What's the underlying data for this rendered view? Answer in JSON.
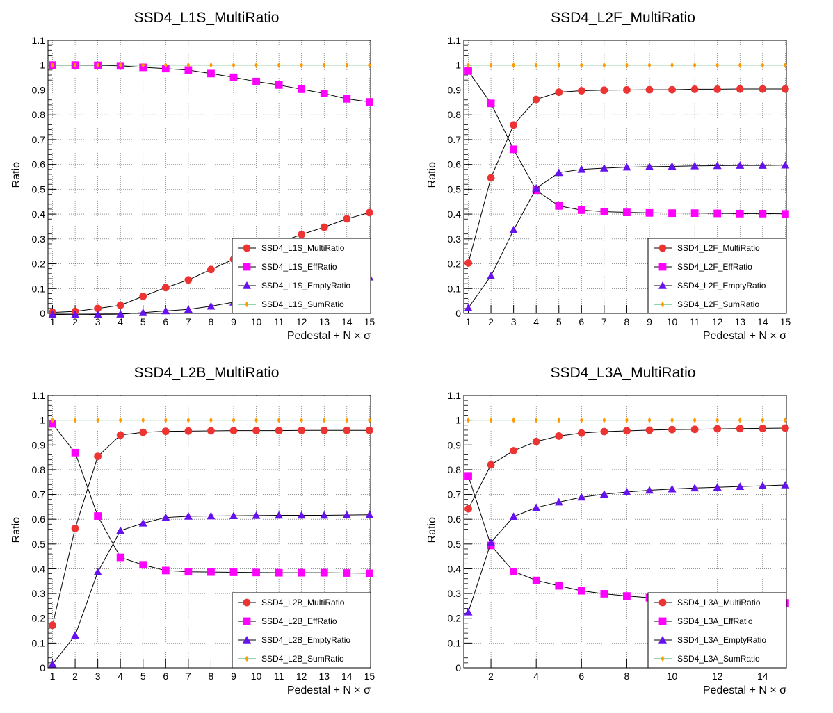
{
  "chart_data": [
    {
      "type": "line",
      "title": "SSD4_L1S_MultiRatio",
      "xlabel": "Pedestal + N × σ",
      "ylabel": "Ratio",
      "xlim": [
        0.8,
        15.05
      ],
      "ylim": [
        0,
        1.1
      ],
      "xticks": [
        1,
        2,
        3,
        4,
        5,
        6,
        7,
        8,
        9,
        10,
        11,
        12,
        13,
        14,
        15
      ],
      "yticks": [
        0,
        0.1,
        0.2,
        0.3,
        0.4,
        0.5,
        0.6,
        0.7,
        0.8,
        0.9,
        1,
        1.1
      ],
      "ytick_labels": [
        "0",
        "0.1",
        "0.2",
        "0.3",
        "0.4",
        "0.5",
        "0.6",
        "0.7",
        "0.8",
        "0.9",
        "1",
        "1.1"
      ],
      "grid": true,
      "legend_position": "bottom-right",
      "x": [
        1,
        2,
        3,
        4,
        5,
        6,
        7,
        8,
        9,
        10,
        11,
        12,
        13,
        14,
        15
      ],
      "series": [
        {
          "name": "SSD4_L1S_MultiRatio",
          "color": "#ee3333",
          "marker": "circle",
          "values": [
            0.004,
            0.008,
            0.02,
            0.033,
            0.069,
            0.104,
            0.135,
            0.177,
            0.218,
            0.26,
            0.285,
            0.318,
            0.347,
            0.381,
            0.406
          ]
        },
        {
          "name": "SSD4_L1S_EffRatio",
          "color": "#ff00ff",
          "marker": "square",
          "values": [
            1.0,
            1.0,
            0.999,
            0.997,
            0.991,
            0.986,
            0.98,
            0.966,
            0.951,
            0.934,
            0.92,
            0.903,
            0.886,
            0.864,
            0.852
          ]
        },
        {
          "name": "SSD4_L1S_EmptyRatio",
          "color": "#6611ee",
          "marker": "triangle",
          "values": [
            -0.004,
            -0.006,
            -0.004,
            -0.003,
            0.003,
            0.01,
            0.016,
            0.029,
            0.045,
            0.061,
            0.078,
            0.094,
            0.108,
            0.127,
            0.146
          ]
        },
        {
          "name": "SSD4_L1S_SumRatio",
          "color": "#ff9900",
          "marker": "diamond",
          "values": [
            1,
            1,
            1,
            1,
            1,
            1,
            1,
            1,
            1,
            1,
            1,
            1,
            1,
            1,
            1
          ]
        }
      ]
    },
    {
      "type": "line",
      "title": "SSD4_L2F_MultiRatio",
      "xlabel": "Pedestal + N × σ",
      "ylabel": "Ratio",
      "xlim": [
        0.8,
        15.05
      ],
      "ylim": [
        0,
        1.1
      ],
      "xticks": [
        1,
        2,
        3,
        4,
        5,
        6,
        7,
        8,
        9,
        10,
        11,
        12,
        13,
        14,
        15
      ],
      "yticks": [
        0,
        0.1,
        0.2,
        0.3,
        0.4,
        0.5,
        0.6,
        0.7,
        0.8,
        0.9,
        1,
        1.1
      ],
      "ytick_labels": [
        "0",
        "0.1",
        "0.2",
        "0.3",
        "0.4",
        "0.5",
        "0.6",
        "0.7",
        "0.8",
        "0.9",
        "1",
        "1.1"
      ],
      "grid": true,
      "legend_position": "bottom-right",
      "x": [
        1,
        2,
        3,
        4,
        5,
        6,
        7,
        8,
        9,
        10,
        11,
        12,
        13,
        14,
        15
      ],
      "series": [
        {
          "name": "SSD4_L2F_MultiRatio",
          "color": "#ee3333",
          "marker": "circle",
          "values": [
            0.203,
            0.546,
            0.759,
            0.862,
            0.891,
            0.897,
            0.899,
            0.9,
            0.901,
            0.901,
            0.903,
            0.903,
            0.904,
            0.904,
            0.904
          ]
        },
        {
          "name": "SSD4_L2F_EffRatio",
          "color": "#ff00ff",
          "marker": "square",
          "values": [
            0.976,
            0.846,
            0.661,
            0.496,
            0.433,
            0.416,
            0.41,
            0.407,
            0.405,
            0.404,
            0.404,
            0.403,
            0.402,
            0.402,
            0.401
          ]
        },
        {
          "name": "SSD4_L2F_EmptyRatio",
          "color": "#6611ee",
          "marker": "triangle",
          "values": [
            0.022,
            0.151,
            0.336,
            0.504,
            0.567,
            0.58,
            0.585,
            0.589,
            0.591,
            0.592,
            0.594,
            0.595,
            0.596,
            0.596,
            0.597
          ]
        },
        {
          "name": "SSD4_L2F_SumRatio",
          "color": "#ff9900",
          "marker": "diamond",
          "values": [
            1,
            1,
            1,
            1,
            1,
            1,
            1,
            1,
            1,
            1,
            1,
            1,
            1,
            1,
            1
          ]
        }
      ]
    },
    {
      "type": "line",
      "title": "SSD4_L2B_MultiRatio",
      "xlabel": "Pedestal + N × σ",
      "ylabel": "Ratio",
      "xlim": [
        0.8,
        15.05
      ],
      "ylim": [
        0,
        1.1
      ],
      "xticks": [
        1,
        2,
        3,
        4,
        5,
        6,
        7,
        8,
        9,
        10,
        11,
        12,
        13,
        14,
        15
      ],
      "yticks": [
        0,
        0.1,
        0.2,
        0.3,
        0.4,
        0.5,
        0.6,
        0.7,
        0.8,
        0.9,
        1,
        1.1
      ],
      "ytick_labels": [
        "0",
        "0.1",
        "0.2",
        "0.3",
        "0.4",
        "0.5",
        "0.6",
        "0.7",
        "0.8",
        "0.9",
        "1",
        "1.1"
      ],
      "grid": true,
      "legend_position": "bottom-right",
      "x": [
        1,
        2,
        3,
        4,
        5,
        6,
        7,
        8,
        9,
        10,
        11,
        12,
        13,
        14,
        15
      ],
      "series": [
        {
          "name": "SSD4_L2B_MultiRatio",
          "color": "#ee3333",
          "marker": "circle",
          "values": [
            0.172,
            0.563,
            0.854,
            0.94,
            0.951,
            0.955,
            0.956,
            0.957,
            0.958,
            0.958,
            0.958,
            0.959,
            0.959,
            0.959,
            0.959
          ]
        },
        {
          "name": "SSD4_L2B_EffRatio",
          "color": "#ff00ff",
          "marker": "square",
          "values": [
            0.985,
            0.869,
            0.613,
            0.446,
            0.416,
            0.393,
            0.388,
            0.387,
            0.386,
            0.385,
            0.384,
            0.384,
            0.384,
            0.383,
            0.382
          ]
        },
        {
          "name": "SSD4_L2B_EmptyRatio",
          "color": "#6611ee",
          "marker": "triangle",
          "values": [
            0.015,
            0.131,
            0.387,
            0.554,
            0.584,
            0.607,
            0.612,
            0.613,
            0.614,
            0.615,
            0.616,
            0.616,
            0.616,
            0.617,
            0.618
          ]
        },
        {
          "name": "SSD4_L2B_SumRatio",
          "color": "#ff9900",
          "marker": "diamond",
          "values": [
            1,
            1,
            1,
            1,
            1,
            1,
            1,
            1,
            1,
            1,
            1,
            1,
            1,
            1,
            1
          ]
        }
      ]
    },
    {
      "type": "line",
      "title": "SSD4_L3A_MultiRatio",
      "xlabel": "Pedestal + N × σ",
      "ylabel": "Ratio",
      "xlim": [
        0.8,
        15.05
      ],
      "ylim": [
        0,
        1.1
      ],
      "xticks": [
        2,
        4,
        6,
        8,
        10,
        12,
        14
      ],
      "yticks": [
        0,
        0.1,
        0.2,
        0.3,
        0.4,
        0.5,
        0.6,
        0.7,
        0.8,
        0.9,
        1,
        1.1
      ],
      "ytick_labels": [
        "0",
        "0.1",
        "0.2",
        "0.3",
        "0.4",
        "0.5",
        "0.6",
        "0.7",
        "0.8",
        "0.9",
        "1",
        "1.1"
      ],
      "grid": true,
      "legend_position": "bottom-right",
      "x": [
        1,
        2,
        3,
        4,
        5,
        6,
        7,
        8,
        9,
        10,
        11,
        12,
        13,
        14,
        15
      ],
      "series": [
        {
          "name": "SSD4_L3A_MultiRatio",
          "color": "#ee3333",
          "marker": "circle",
          "values": [
            0.642,
            0.82,
            0.877,
            0.914,
            0.936,
            0.948,
            0.954,
            0.957,
            0.96,
            0.962,
            0.963,
            0.965,
            0.966,
            0.967,
            0.968
          ]
        },
        {
          "name": "SSD4_L3A_EffRatio",
          "color": "#ff00ff",
          "marker": "square",
          "values": [
            0.775,
            0.494,
            0.389,
            0.353,
            0.331,
            0.311,
            0.299,
            0.29,
            0.283,
            0.278,
            0.274,
            0.271,
            0.268,
            0.265,
            0.262
          ]
        },
        {
          "name": "SSD4_L3A_EmptyRatio",
          "color": "#6611ee",
          "marker": "triangle",
          "values": [
            0.225,
            0.506,
            0.611,
            0.647,
            0.669,
            0.689,
            0.701,
            0.71,
            0.717,
            0.722,
            0.726,
            0.729,
            0.732,
            0.735,
            0.738
          ]
        },
        {
          "name": "SSD4_L3A_SumRatio",
          "color": "#ff9900",
          "marker": "diamond",
          "values": [
            1,
            1,
            1,
            1,
            1,
            1,
            1,
            1,
            1,
            1,
            1,
            1,
            1,
            1,
            1
          ]
        }
      ]
    }
  ]
}
